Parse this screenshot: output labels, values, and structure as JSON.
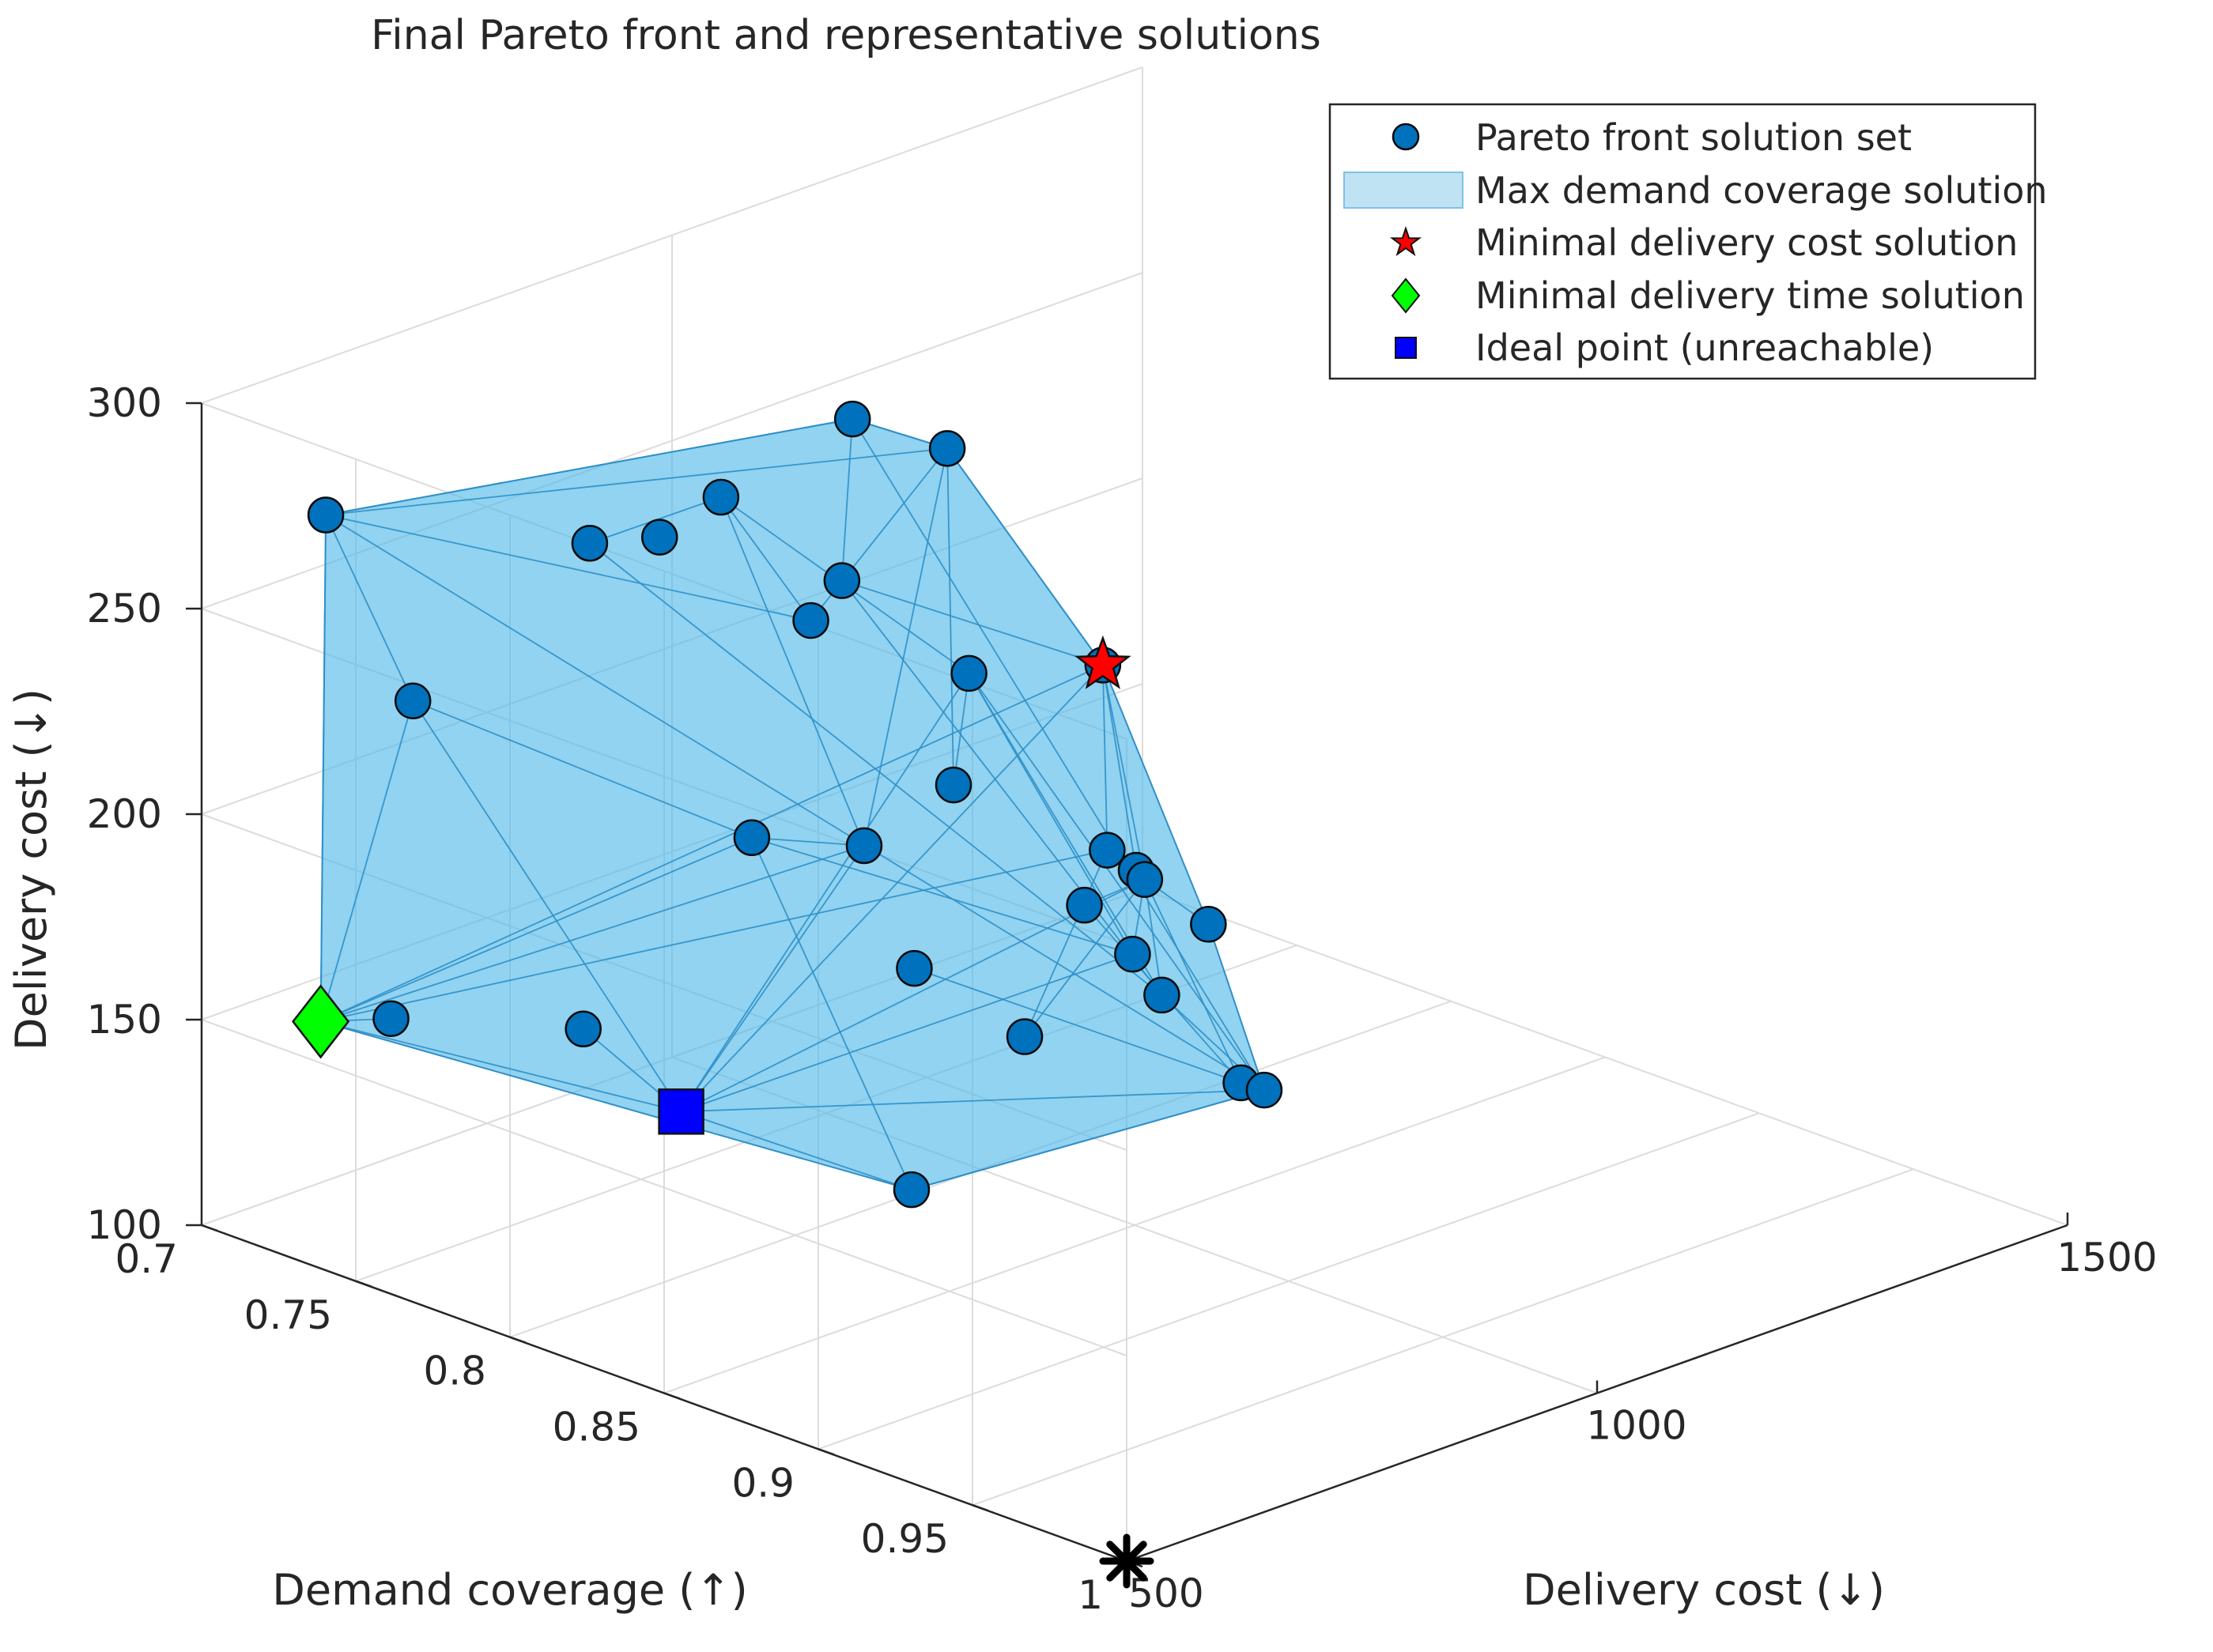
{
  "chart_data": {
    "type": "scatter3d",
    "title": "Final Pareto front and representative solutions",
    "xlabel": "Delivery cost (↓)",
    "ylabel": "Demand coverage (↑)",
    "zlabel": "Delivery cost (↓)",
    "xlim": [
      500,
      1500
    ],
    "ylim": [
      0.7,
      1
    ],
    "zlim": [
      100,
      300
    ],
    "x_ticks": [
      "500",
      "1000",
      "1500"
    ],
    "y_ticks": [
      "0.7",
      "0.75",
      "0.8",
      "0.85",
      "0.9",
      "0.95",
      "1"
    ],
    "z_ticks": [
      "100",
      "150",
      "200",
      "250",
      "300"
    ],
    "legend_position": "top-right",
    "legend": [
      {
        "label": "Pareto front solution set",
        "marker": "circle",
        "color": "#0072bd"
      },
      {
        "label": "Max demand coverage solution",
        "marker": "patch",
        "color": "#bfe3f3"
      },
      {
        "label": "Minimal delivery cost solution",
        "marker": "star",
        "color": "#ff0000"
      },
      {
        "label": "Minimal delivery time solution",
        "marker": "diamond",
        "color": "#00ff00"
      },
      {
        "label": "Ideal point (unreachable)",
        "marker": "square",
        "color": "#0000ff"
      }
    ],
    "pareto_points": [
      {
        "id": "A",
        "x": 632,
        "y": 0.7,
        "z": 262
      },
      {
        "id": "B",
        "x": 659,
        "y": 0.72,
        "z": 220
      },
      {
        "id": "C",
        "x": 603,
        "y": 0.73,
        "z": 150
      },
      {
        "id": "D",
        "x": 709,
        "y": 0.76,
        "z": 147
      },
      {
        "id": "E",
        "x": 847,
        "y": 0.72,
        "z": 243
      },
      {
        "id": "F",
        "x": 954,
        "y": 0.71,
        "z": 233
      },
      {
        "id": "G",
        "x": 1052,
        "y": 0.7,
        "z": 232
      },
      {
        "id": "H",
        "x": 1159,
        "y": 0.71,
        "z": 245
      },
      {
        "id": "I",
        "x": 1227,
        "y": 0.72,
        "z": 235
      },
      {
        "id": "J",
        "x": 1115,
        "y": 0.72,
        "z": 212
      },
      {
        "id": "K",
        "x": 1119,
        "y": 0.76,
        "z": 200
      },
      {
        "id": "L",
        "x": 1082,
        "y": 0.72,
        "z": 205
      },
      {
        "id": "M",
        "x": 839,
        "y": 0.775,
        "z": 187
      },
      {
        "id": "N",
        "x": 942,
        "y": 0.78,
        "z": 178
      },
      {
        "id": "O",
        "x": 1037,
        "y": 0.78,
        "z": 185
      },
      {
        "id": "P",
        "x": 897,
        "y": 0.81,
        "z": 160
      },
      {
        "id": "Q",
        "x": 916,
        "y": 0.84,
        "z": 150
      },
      {
        "id": "R",
        "x": 1045,
        "y": 0.82,
        "z": 166
      },
      {
        "id": "S",
        "x": 1047,
        "y": 0.835,
        "z": 158
      },
      {
        "id": "T",
        "x": 1100,
        "y": 0.82,
        "z": 170
      },
      {
        "id": "U",
        "x": 1102,
        "y": 0.81,
        "z": 172
      },
      {
        "id": "V",
        "x": 982,
        "y": 0.89,
        "z": 147
      },
      {
        "id": "W",
        "x": 1144,
        "y": 0.83,
        "z": 156
      },
      {
        "id": "X",
        "x": 763,
        "y": 0.85,
        "z": 128
      },
      {
        "id": "Y",
        "x": 1105,
        "y": 0.86,
        "z": 127
      },
      {
        "id": "Z",
        "x": 1160,
        "y": 0.81,
        "z": 132
      },
      {
        "id": "AA",
        "x": 1273,
        "y": 0.77,
        "z": 140
      },
      {
        "id": "AB",
        "x": 1294,
        "y": 0.75,
        "z": 185
      },
      {
        "id": "AC",
        "x": 682,
        "y": 0.8,
        "z": 140
      }
    ],
    "min_time_solution": {
      "x": 561,
      "y": 0.72,
      "z": 150
    },
    "min_cost_solution": {
      "x": 1294,
      "y": 0.75,
      "z": 185
    },
    "ideal_point": {
      "x": 682,
      "y": 0.8,
      "z": 140
    },
    "origin_marker": {
      "x": 500,
      "y": 1.0,
      "z": 100
    }
  }
}
